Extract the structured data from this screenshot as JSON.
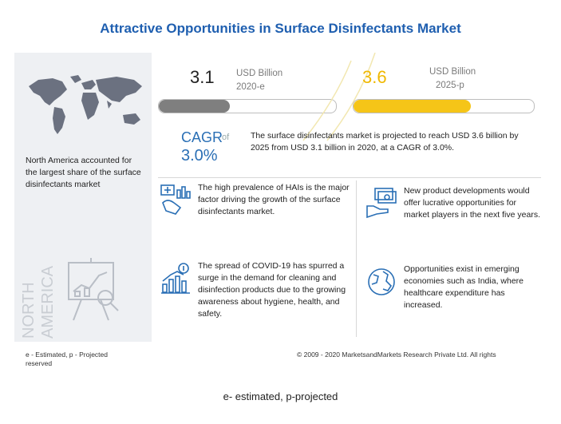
{
  "title": "Attractive Opportunities in Surface Disinfectants Market",
  "sidebar": {
    "region_text": "North America accounted for the largest share of the surface disinfectants market",
    "region_vertical_label": [
      "NORTH",
      "AMERICA"
    ]
  },
  "market": {
    "value_2020": "3.1",
    "unit_2020": "USD Billion",
    "year_2020": "2020-e",
    "fill_2020": 0.4,
    "value_2025": "3.6",
    "unit_2025": "USD Billion",
    "year_2025": "2025-p",
    "fill_2025": 0.65,
    "colors": {
      "bar_2020": "#7f7f7f",
      "bar_2025": "#f5c518",
      "accent": "#1f5fb0"
    }
  },
  "cagr": {
    "label": "CAGR",
    "of": "of",
    "value": "3.0%",
    "summary": "The surface disinfectants market is projected to reach USD 3.6 billion by 2025 from USD 3.1 billion in 2020, at a CAGR of 3.0%."
  },
  "insights": [
    {
      "icon": "hospital-chart-icon",
      "text": "The high prevalence of HAIs is the major factor driving the growth of the surface disinfectants market."
    },
    {
      "icon": "money-hand-icon",
      "text": "New product developments would offer lucrative opportunities for market players in the next five years."
    },
    {
      "icon": "growth-chart-icon",
      "text": "The spread of COVID-19 has spurred a surge in the demand for cleaning and disinfection products due to the growing awareness about hygiene, health, and safety."
    },
    {
      "icon": "globe-icon",
      "text": "Opportunities exist in emerging economies such as India, where healthcare expenditure has increased."
    }
  ],
  "footer": {
    "legend": "e - Estimated, p - Projected",
    "legend_line2": "reserved",
    "copyright": "© 2009 - 2020 MarketsandMarkets Research Private Ltd. All rights"
  },
  "bottom_note": "e- estimated, p-projected"
}
